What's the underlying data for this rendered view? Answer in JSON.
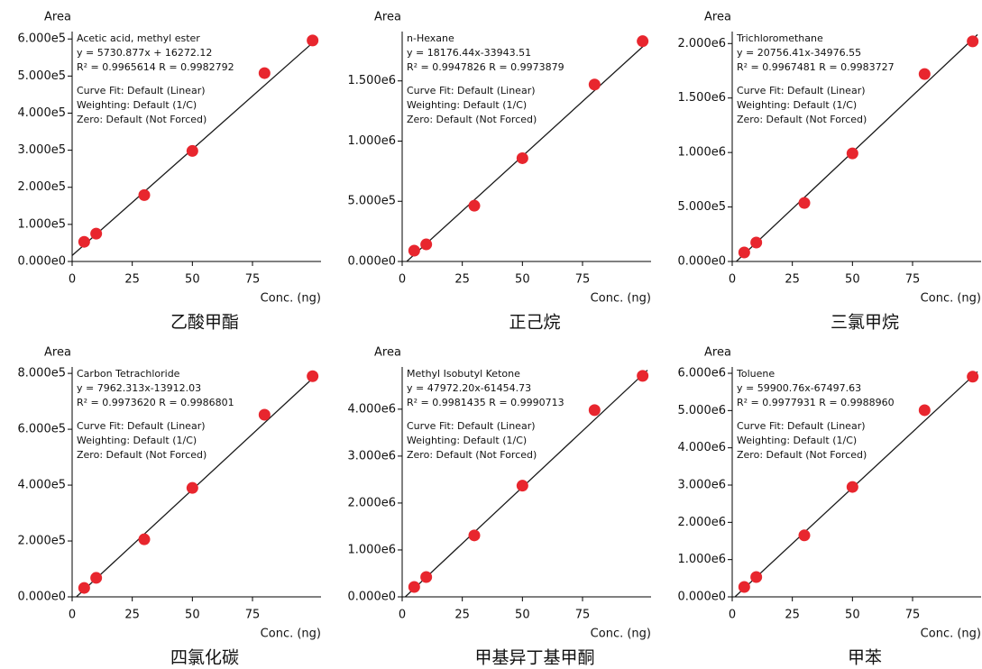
{
  "chart_data": [
    {
      "type": "scatter",
      "title": "乙酸甲酯",
      "xlabel": "Conc. (ng)",
      "ylabel": "Area",
      "annotations": [
        "Acetic acid, methyl ester",
        "y = 5730.877x + 16272.12",
        "R² = 0.9965614    R = 0.9982792",
        "Curve Fit: Default (Linear)",
        "Weighting: Default (1/C)",
        "Zero: Default (Not Forced)"
      ],
      "x": [
        5,
        10,
        30,
        50,
        80,
        100
      ],
      "values": [
        53000,
        75000,
        179000,
        298000,
        508000,
        596000
      ],
      "color": "#e8262e",
      "xlim": [
        0,
        102
      ],
      "ylim": [
        0,
        620000
      ],
      "xticks": [
        0,
        25,
        50,
        75
      ],
      "yticks": [
        {
          "value": 0,
          "label": "0.000e0"
        },
        {
          "value": 100000,
          "label": "1.000e5"
        },
        {
          "value": 200000,
          "label": "2.000e5"
        },
        {
          "value": 300000,
          "label": "3.000e5"
        },
        {
          "value": 400000,
          "label": "4.000e5"
        },
        {
          "value": 500000,
          "label": "5.000e5"
        },
        {
          "value": 600000,
          "label": "6.000e5"
        }
      ],
      "fit_line": {
        "x": [
          0,
          102
        ],
        "values": [
          16000,
          601000
        ],
        "color": "#1a1a1a"
      }
    },
    {
      "type": "scatter",
      "title": "正己烷",
      "xlabel": "Conc. (ng)",
      "ylabel": "Area",
      "annotations": [
        "n-Hexane",
        "y = 18176.44x-33943.51",
        "R² = 0.9947826    R = 0.9973879",
        "Curve Fit: Default (Linear)",
        "Weighting: Default (1/C)",
        "Zero: Default (Not Forced)"
      ],
      "x": [
        5,
        10,
        30,
        50,
        80,
        100
      ],
      "values": [
        90000,
        142000,
        463000,
        858000,
        1470000,
        1830000
      ],
      "color": "#e8262e",
      "xlim": [
        0,
        102
      ],
      "ylim": [
        0,
        1910000
      ],
      "xticks": [
        0,
        25,
        50,
        75
      ],
      "yticks": [
        {
          "value": 0,
          "label": "0.000e0"
        },
        {
          "value": 500000,
          "label": "5.000e5"
        },
        {
          "value": 1000000,
          "label": "1.000e6"
        },
        {
          "value": 1500000,
          "label": "1.500e6"
        }
      ],
      "fit_line": {
        "x": [
          0,
          102
        ],
        "values": [
          -34000,
          1820000
        ],
        "color": "#1a1a1a"
      }
    },
    {
      "type": "scatter",
      "title": "三氯甲烷",
      "xlabel": "Conc. (ng)",
      "ylabel": "Area",
      "annotations": [
        "Trichloromethane",
        "y = 20756.41x-34976.55",
        "R² = 0.9967481    R = 0.9983727",
        "Curve Fit: Default (Linear)",
        "Weighting: Default (1/C)",
        "Zero: Default (Not Forced)"
      ],
      "x": [
        5,
        10,
        30,
        50,
        80,
        100
      ],
      "values": [
        83000,
        174000,
        537000,
        992000,
        1720000,
        2020000
      ],
      "color": "#e8262e",
      "xlim": [
        0,
        102
      ],
      "ylim": [
        0,
        2110000
      ],
      "xticks": [
        0,
        25,
        50,
        75
      ],
      "yticks": [
        {
          "value": 0,
          "label": "0.000e0"
        },
        {
          "value": 500000,
          "label": "5.000e5"
        },
        {
          "value": 1000000,
          "label": "1.000e6"
        },
        {
          "value": 1500000,
          "label": "1.500e6"
        },
        {
          "value": 2000000,
          "label": "2.000e6"
        }
      ],
      "fit_line": {
        "x": [
          0,
          102
        ],
        "values": [
          -35000,
          2082000
        ],
        "color": "#1a1a1a"
      }
    },
    {
      "type": "scatter",
      "title": "四氯化碳",
      "xlabel": "Conc. (ng)",
      "ylabel": "Area",
      "annotations": [
        "Carbon Tetrachloride",
        "y = 7962.313x-13912.03",
        "R² = 0.9973620    R = 0.9986801",
        "Curve Fit: Default (Linear)",
        "Weighting: Default (1/C)",
        "Zero: Default (Not Forced)"
      ],
      "x": [
        5,
        10,
        30,
        50,
        80,
        100
      ],
      "values": [
        32000,
        68000,
        206000,
        390000,
        652000,
        790000
      ],
      "color": "#e8262e",
      "xlim": [
        0,
        102
      ],
      "ylim": [
        0,
        823000
      ],
      "xticks": [
        0,
        25,
        50,
        75
      ],
      "yticks": [
        {
          "value": 0,
          "label": "0.000e0"
        },
        {
          "value": 200000,
          "label": "2.000e5"
        },
        {
          "value": 400000,
          "label": "4.000e5"
        },
        {
          "value": 600000,
          "label": "6.000e5"
        },
        {
          "value": 800000,
          "label": "8.000e5"
        }
      ],
      "fit_line": {
        "x": [
          0,
          102
        ],
        "values": [
          -14000,
          798000
        ],
        "color": "#1a1a1a"
      }
    },
    {
      "type": "scatter",
      "title": "甲基异丁基甲酮",
      "xlabel": "Conc. (ng)",
      "ylabel": "Area",
      "annotations": [
        "Methyl Isobutyl Ketone",
        "y = 47972.20x-61454.73",
        "R² = 0.9981435    R = 0.9990713",
        "Curve Fit: Default (Linear)",
        "Weighting: Default (1/C)",
        "Zero: Default (Not Forced)"
      ],
      "x": [
        5,
        10,
        30,
        50,
        80,
        100
      ],
      "values": [
        212000,
        423000,
        1310000,
        2370000,
        3980000,
        4710000
      ],
      "color": "#e8262e",
      "xlim": [
        0,
        102
      ],
      "ylim": [
        0,
        4900000
      ],
      "xticks": [
        0,
        25,
        50,
        75
      ],
      "yticks": [
        {
          "value": 0,
          "label": "0.000e0"
        },
        {
          "value": 1000000,
          "label": "1.000e6"
        },
        {
          "value": 2000000,
          "label": "2.000e6"
        },
        {
          "value": 3000000,
          "label": "3.000e6"
        },
        {
          "value": 4000000,
          "label": "4.000e6"
        }
      ],
      "fit_line": {
        "x": [
          0,
          102
        ],
        "values": [
          -61000,
          4832000
        ],
        "color": "#1a1a1a"
      }
    },
    {
      "type": "scatter",
      "title": "甲苯",
      "xlabel": "Conc. (ng)",
      "ylabel": "Area",
      "annotations": [
        "Toluene",
        "y = 59900.76x-67497.63",
        "R² = 0.9977931    R = 0.9988960",
        "Curve Fit: Default (Linear)",
        "Weighting: Default (1/C)",
        "Zero: Default (Not Forced)"
      ],
      "x": [
        5,
        10,
        30,
        50,
        80,
        100
      ],
      "values": [
        266000,
        533000,
        1650000,
        2950000,
        5010000,
        5910000
      ],
      "color": "#e8262e",
      "xlim": [
        0,
        102
      ],
      "ylim": [
        0,
        6170000
      ],
      "xticks": [
        0,
        25,
        50,
        75
      ],
      "yticks": [
        {
          "value": 0,
          "label": "0.000e0"
        },
        {
          "value": 1000000,
          "label": "1.000e6"
        },
        {
          "value": 2000000,
          "label": "2.000e6"
        },
        {
          "value": 3000000,
          "label": "3.000e6"
        },
        {
          "value": 4000000,
          "label": "4.000e6"
        },
        {
          "value": 5000000,
          "label": "5.000e6"
        },
        {
          "value": 6000000,
          "label": "6.000e6"
        }
      ],
      "fit_line": {
        "x": [
          0,
          102
        ],
        "values": [
          -67000,
          6042000
        ],
        "color": "#1a1a1a"
      }
    }
  ]
}
